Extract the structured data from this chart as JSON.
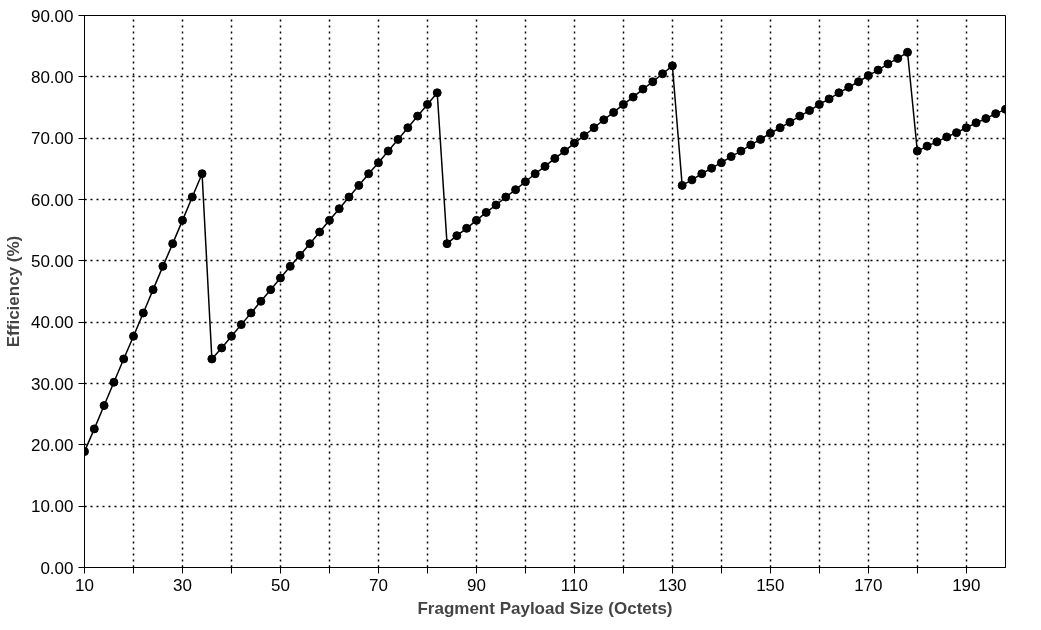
{
  "chart_data": {
    "type": "line",
    "xlabel": "Fragment Payload Size (Octets)",
    "ylabel": "Efficiency (%)",
    "x": [
      10,
      12,
      14,
      16,
      18,
      20,
      22,
      24,
      26,
      28,
      30,
      32,
      34,
      36,
      38,
      40,
      42,
      44,
      46,
      48,
      50,
      52,
      54,
      56,
      58,
      60,
      62,
      64,
      66,
      68,
      70,
      72,
      74,
      76,
      78,
      80,
      82,
      84,
      86,
      88,
      90,
      92,
      94,
      96,
      98,
      100,
      102,
      104,
      106,
      108,
      110,
      112,
      114,
      116,
      118,
      120,
      122,
      124,
      126,
      128,
      130,
      132,
      134,
      136,
      138,
      140,
      142,
      144,
      146,
      148,
      150,
      152,
      154,
      156,
      158,
      160,
      162,
      164,
      166,
      168,
      170,
      172,
      174,
      176,
      178,
      180,
      182,
      184,
      186,
      188,
      190,
      192,
      194,
      196,
      198
    ],
    "series": [
      {
        "color": "#000000",
        "values": [
          18.9,
          22.6,
          26.4,
          30.2,
          34.0,
          37.7,
          41.5,
          45.3,
          49.1,
          52.8,
          56.6,
          60.4,
          64.2,
          34.0,
          35.8,
          37.7,
          39.6,
          41.5,
          43.4,
          45.3,
          47.2,
          49.1,
          50.9,
          52.8,
          54.7,
          56.6,
          58.5,
          60.4,
          62.3,
          64.2,
          66.0,
          67.9,
          69.8,
          71.7,
          73.6,
          75.5,
          77.4,
          52.8,
          54.1,
          55.3,
          56.6,
          57.9,
          59.1,
          60.4,
          61.6,
          62.9,
          64.2,
          65.4,
          66.7,
          67.9,
          69.2,
          70.4,
          71.7,
          73.0,
          74.2,
          75.5,
          76.7,
          78.0,
          79.2,
          80.5,
          81.8,
          62.3,
          63.2,
          64.2,
          65.1,
          66.0,
          67.0,
          67.9,
          68.9,
          69.8,
          70.8,
          71.7,
          72.6,
          73.6,
          74.5,
          75.5,
          76.4,
          77.4,
          78.3,
          79.2,
          80.2,
          81.1,
          82.1,
          83.0,
          84.0,
          67.9,
          68.7,
          69.4,
          70.2,
          70.9,
          71.7,
          72.5,
          73.2,
          74.0,
          74.7
        ]
      }
    ],
    "xlim": [
      10,
      198
    ],
    "xticks": [
      10,
      {
        "value": 20,
        "label": null
      },
      30,
      {
        "value": 40,
        "label": null
      },
      50,
      {
        "value": 60,
        "label": null
      },
      70,
      {
        "value": 80,
        "label": null
      },
      90,
      {
        "value": 100,
        "label": null
      },
      110,
      {
        "value": 120,
        "label": null
      },
      130,
      {
        "value": 140,
        "label": null
      },
      150,
      {
        "value": 160,
        "label": null
      },
      170,
      {
        "value": 180,
        "label": null
      },
      190
    ],
    "ylim": [
      0,
      90
    ],
    "yticks": [
      {
        "value": 0,
        "label": "0.00"
      },
      {
        "value": 10,
        "label": "10.00"
      },
      {
        "value": 20,
        "label": "20.00"
      },
      {
        "value": 30,
        "label": "30.00"
      },
      {
        "value": 40,
        "label": "40.00"
      },
      {
        "value": 50,
        "label": "50.00"
      },
      {
        "value": 60,
        "label": "60.00"
      },
      {
        "value": 70,
        "label": "70.00"
      },
      {
        "value": 80,
        "label": "80.00"
      },
      {
        "value": 90,
        "label": "90.00"
      }
    ],
    "grid": true,
    "marker": "circle",
    "line_style": "solid"
  }
}
